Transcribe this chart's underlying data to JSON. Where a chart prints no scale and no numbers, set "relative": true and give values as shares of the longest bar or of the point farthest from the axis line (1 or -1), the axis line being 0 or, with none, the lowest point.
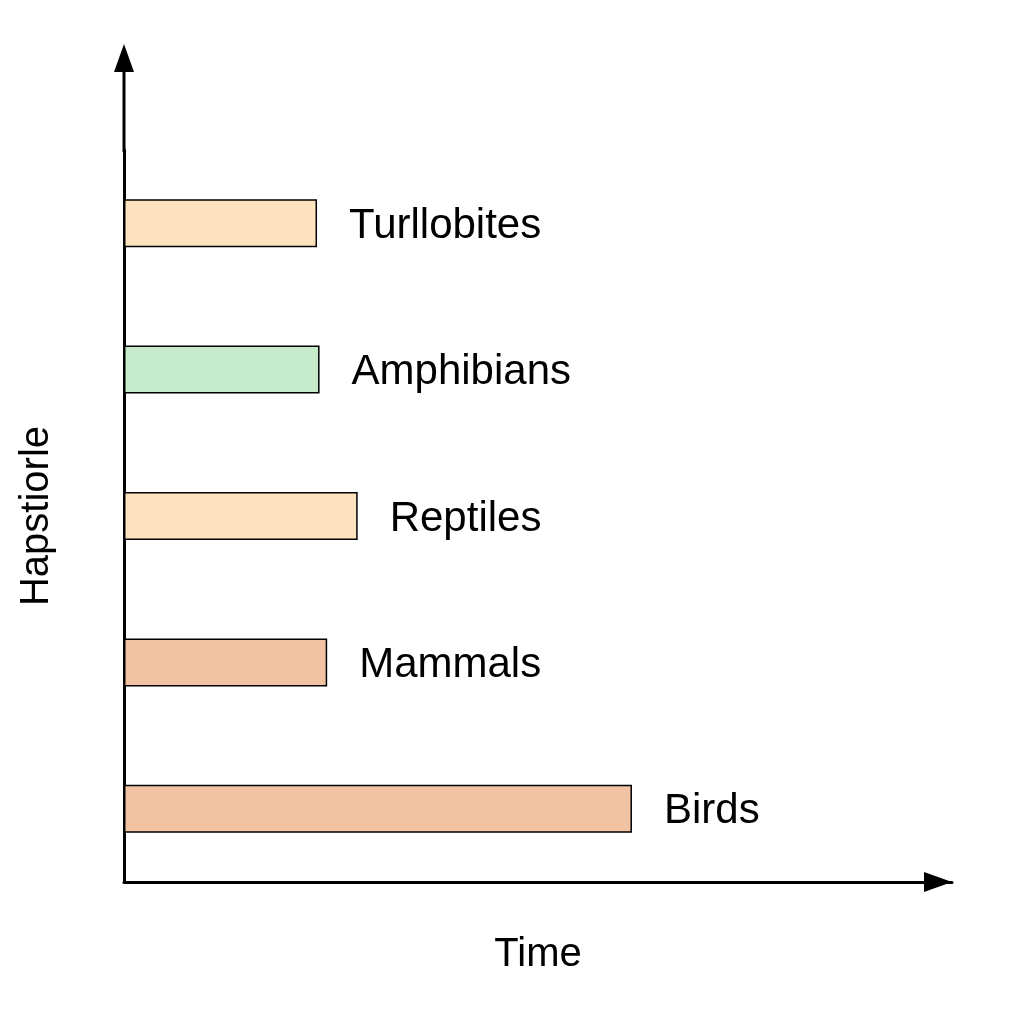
{
  "chart_data": {
    "type": "bar",
    "orientation": "horizontal",
    "relative": true,
    "categories": [
      "Turllobites",
      "Amphibians",
      "Reptiles",
      "Mammals",
      "Birds"
    ],
    "values": [
      0.38,
      0.385,
      0.46,
      0.4,
      1
    ],
    "colors": [
      "#fde3bd",
      "#c5ebcb",
      "#fde3bd",
      "#f1c3a2",
      "#f1c3a2"
    ],
    "xlabel": "Time",
    "ylabel": "Hapstiorle"
  }
}
